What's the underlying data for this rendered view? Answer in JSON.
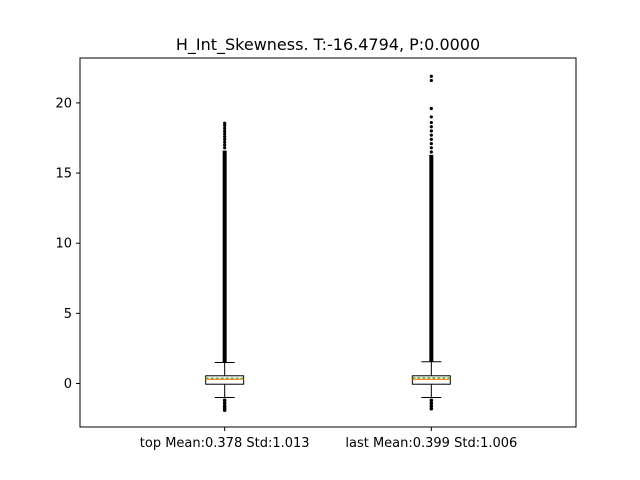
{
  "chart_data": {
    "type": "box",
    "title": "H_Int_Skewness. T:-16.4794, P:0.0000",
    "xlabel": "",
    "ylabel": "",
    "ylim": [
      -3.1,
      23.2
    ],
    "yticks": [
      0,
      5,
      10,
      15,
      20
    ],
    "categories": [
      "top Mean:0.378 Std:1.013",
      "last Mean:0.399 Std:1.006"
    ],
    "boxes": [
      {
        "category": "top Mean:0.378 Std:1.013",
        "whisker_low": -1.0,
        "q1": -0.05,
        "median": 0.3,
        "mean": 0.378,
        "q3": 0.55,
        "whisker_high": 1.5,
        "outliers_low": [
          -1.2,
          -1.4,
          -1.6,
          -1.75,
          -1.9
        ],
        "outlier_band_high": [
          1.5,
          16.6
        ],
        "outliers_high_sparse": [
          16.8,
          17.0,
          17.2,
          17.4,
          17.6,
          17.8,
          18.0,
          18.2,
          18.4,
          18.55
        ]
      },
      {
        "category": "last Mean:0.399 Std:1.006",
        "whisker_low": -1.0,
        "q1": -0.05,
        "median": 0.3,
        "mean": 0.399,
        "q3": 0.55,
        "whisker_high": 1.55,
        "outliers_low": [
          -1.2,
          -1.4,
          -1.6,
          -1.8
        ],
        "outlier_band_high": [
          1.55,
          16.3
        ],
        "outliers_high_sparse": [
          16.5,
          16.8,
          17.1,
          17.4,
          17.7,
          18.0,
          18.3,
          18.6,
          19.0,
          19.6,
          21.6,
          21.9
        ]
      }
    ],
    "colors": {
      "median": "#ff7f0e",
      "mean": "#2ca02c",
      "box": "#000000",
      "outlier": "#000000"
    }
  }
}
